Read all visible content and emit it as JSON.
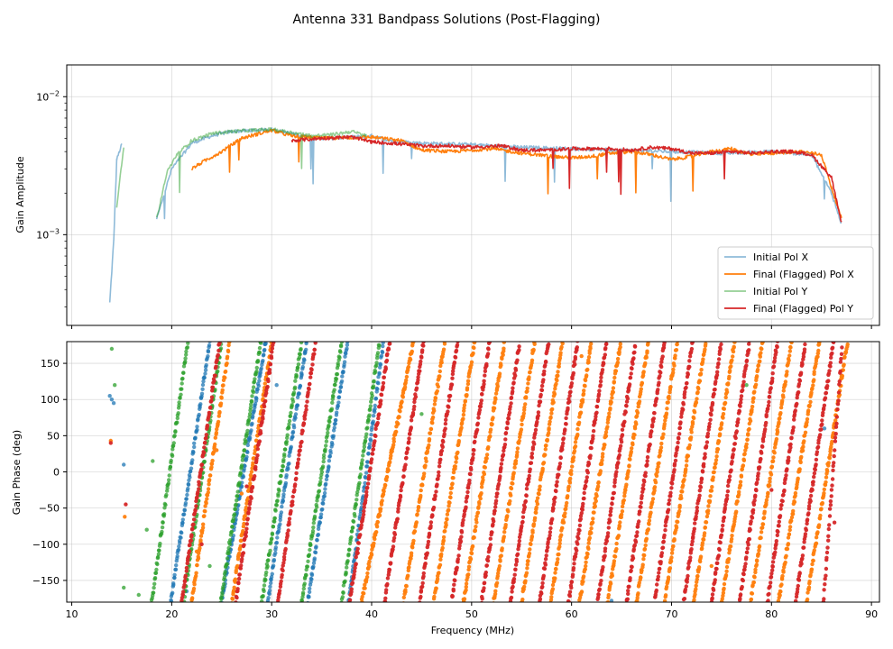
{
  "title": "Antenna 331 Bandpass Solutions (Post-Flagging)",
  "chart_data": [
    {
      "type": "line",
      "panel": "amplitude",
      "ylabel": "Gain Amplitude",
      "yscale": "log",
      "ylim": [
        0.00022,
        0.017
      ],
      "xlim": [
        9.5,
        90.8
      ],
      "y_ticks": [
        {
          "value": 0.001,
          "base": "10",
          "exp": "−3"
        },
        {
          "value": 0.01,
          "base": "10",
          "exp": "−2"
        }
      ],
      "legend_position": "lower-right",
      "series": [
        {
          "name": "Initial Pol X",
          "color": "#1f77b4",
          "alpha": 0.5,
          "x": [
            13.8,
            14.2,
            14.5,
            15.0,
            16.0,
            18.5,
            20.0,
            22.0,
            24.0,
            26.0,
            28.0,
            30.0,
            32.0,
            34.0,
            36.0,
            38.0,
            40.0,
            42.0,
            45.0,
            50.0,
            55.0,
            60.0,
            65.0,
            70.0,
            75.0,
            80.0,
            84.0,
            86.0,
            87.0
          ],
          "y": [
            0.00032,
            0.0009,
            0.0035,
            0.0045,
            null,
            0.0013,
            0.003,
            0.0046,
            0.0052,
            0.0056,
            0.0057,
            0.0058,
            0.0054,
            0.005,
            0.005,
            0.0051,
            0.0052,
            0.0048,
            0.0046,
            0.0045,
            0.0043,
            0.0042,
            0.0041,
            0.004,
            0.0039,
            0.004,
            0.0038,
            0.002,
            0.0012
          ]
        },
        {
          "name": "Final (Flagged) Pol X",
          "color": "#ff7f0e",
          "alpha": 1,
          "x": [
            22.0,
            23.5,
            25.0,
            27.0,
            30.0,
            32.0,
            35.0,
            40.0,
            43.0,
            45.0,
            48.0,
            50.0,
            52.0,
            55.0,
            58.0,
            60.0,
            62.0,
            64.0,
            66.0,
            68.0,
            70.0,
            72.0,
            74.0,
            76.0,
            78.0,
            80.0,
            83.0,
            85.0,
            86.0,
            87.0
          ],
          "y": [
            0.003,
            0.0035,
            0.004,
            0.005,
            0.0057,
            0.0052,
            0.005,
            0.0051,
            0.0048,
            0.0041,
            0.004,
            0.0041,
            0.0042,
            0.0039,
            0.0037,
            0.0036,
            0.0037,
            0.0039,
            0.004,
            0.0038,
            0.0035,
            0.0037,
            0.004,
            0.0042,
            0.0038,
            0.0039,
            0.004,
            0.0038,
            0.0022,
            0.0013
          ]
        },
        {
          "name": "Initial Pol Y",
          "color": "#2ca02c",
          "alpha": 0.5,
          "x": [
            14.5,
            15.2,
            16.0,
            18.5,
            19.5,
            20.5,
            22.0,
            24.0,
            26.0,
            28.0,
            30.0,
            32.0,
            34.0,
            36.0,
            38.0,
            39.5
          ],
          "y": [
            0.0016,
            0.0044,
            null,
            0.0013,
            0.0028,
            0.0038,
            0.0048,
            0.0054,
            0.0056,
            0.0057,
            0.0058,
            0.0055,
            0.0052,
            0.0053,
            0.0056,
            0.0052
          ]
        },
        {
          "name": "Final (Flagged) Pol Y",
          "color": "#d62728",
          "alpha": 1,
          "x": [
            32.0,
            35.0,
            38.0,
            40.0,
            42.0,
            45.0,
            48.0,
            50.0,
            53.0,
            55.0,
            58.0,
            60.0,
            62.0,
            64.0,
            66.0,
            68.0,
            70.0,
            72.0,
            74.0,
            76.0,
            78.0,
            80.0,
            82.0,
            84.0,
            86.0,
            87.0
          ],
          "y": [
            0.0048,
            0.005,
            0.0051,
            0.0047,
            0.0046,
            0.0044,
            0.0044,
            0.0043,
            0.0044,
            0.0041,
            0.0041,
            0.0042,
            0.0042,
            0.0042,
            0.0041,
            0.0043,
            0.0042,
            0.0039,
            0.0039,
            0.004,
            0.0039,
            0.004,
            0.004,
            0.0038,
            0.0026,
            0.0012
          ]
        }
      ]
    },
    {
      "type": "scatter",
      "panel": "phase",
      "ylabel": "Gain Phase (deg)",
      "xlabel": "Frequency (MHz)",
      "xlim": [
        9.5,
        90.8
      ],
      "ylim": [
        -180,
        180
      ],
      "x_ticks": [
        "10",
        "20",
        "30",
        "40",
        "50",
        "60",
        "70",
        "80",
        "90"
      ],
      "y_ticks": [
        "150",
        "100",
        "50",
        "0",
        "−50",
        "−100",
        "−150"
      ],
      "series": [
        {
          "name": "Initial Pol X",
          "color": "#1f77b4",
          "wraps": [
            [
              19.9,
              23.8
            ],
            [
              25.0,
              29.4
            ],
            [
              29.6,
              33.5
            ],
            [
              33.6,
              37.6
            ],
            [
              37.7,
              41.2
            ]
          ],
          "outliers": [
            [
              13.8,
              105
            ],
            [
              14.0,
              100
            ],
            [
              14.2,
              95
            ],
            [
              15.2,
              10
            ],
            [
              21.5,
              -165
            ],
            [
              30.5,
              120
            ],
            [
              64.0,
              -178
            ],
            [
              85.3,
              60
            ]
          ]
        },
        {
          "name": "Final (Flagged) Pol X",
          "color": "#ff7f0e",
          "wraps": [
            [
              22.0,
              25.8
            ],
            [
              26.0,
              30.0
            ],
            [
              39.0,
              44.2
            ],
            [
              43.2,
              47.3
            ],
            [
              46.2,
              50.3
            ],
            [
              49.2,
              53.3
            ],
            [
              52.2,
              56.3
            ],
            [
              55.0,
              59.1
            ],
            [
              57.9,
              62.0
            ],
            [
              60.8,
              64.9
            ],
            [
              63.6,
              67.7
            ],
            [
              66.5,
              70.6
            ],
            [
              69.3,
              73.4
            ],
            [
              72.2,
              76.3
            ],
            [
              75.0,
              79.1
            ],
            [
              77.9,
              82.0
            ],
            [
              80.7,
              84.8
            ],
            [
              83.5,
              87.6
            ]
          ],
          "outliers": [
            [
              13.9,
              43
            ],
            [
              15.3,
              -62
            ],
            [
              22.5,
              -110
            ],
            [
              24.5,
              30
            ],
            [
              27.0,
              -30
            ],
            [
              61.0,
              160
            ],
            [
              74.0,
              -130
            ]
          ]
        },
        {
          "name": "Initial Pol Y",
          "color": "#2ca02c",
          "wraps": [
            [
              18.0,
              21.6
            ],
            [
              21.2,
              25.0
            ],
            [
              24.9,
              28.9
            ],
            [
              29.0,
              33.0
            ],
            [
              33.0,
              37.0
            ],
            [
              37.0,
              40.8
            ]
          ],
          "outliers": [
            [
              14.0,
              170
            ],
            [
              14.3,
              120
            ],
            [
              15.2,
              -160
            ],
            [
              16.7,
              -170
            ],
            [
              17.5,
              -80
            ],
            [
              18.1,
              15
            ],
            [
              23.8,
              -130
            ],
            [
              45.0,
              80
            ],
            [
              77.5,
              120
            ]
          ]
        },
        {
          "name": "Final (Flagged) Pol Y",
          "color": "#d62728",
          "wraps": [
            [
              21.0,
              24.8
            ],
            [
              26.4,
              30.2
            ],
            [
              30.6,
              34.4
            ],
            [
              37.8,
              41.8
            ],
            [
              41.3,
              45.2
            ],
            [
              44.8,
              48.6
            ],
            [
              48.0,
              51.8
            ],
            [
              51.0,
              54.8
            ],
            [
              53.9,
              57.7
            ],
            [
              56.8,
              60.6
            ],
            [
              59.7,
              63.5
            ],
            [
              62.6,
              66.4
            ],
            [
              65.5,
              69.3
            ],
            [
              68.3,
              72.1
            ],
            [
              71.2,
              75.0
            ],
            [
              74.0,
              77.8
            ],
            [
              76.8,
              80.6
            ],
            [
              79.6,
              83.4
            ],
            [
              82.4,
              86.2
            ],
            [
              85.2,
              87.1
            ]
          ],
          "outliers": [
            [
              13.9,
              40
            ],
            [
              15.4,
              -45
            ],
            [
              23.0,
              -100
            ],
            [
              27.5,
              -20
            ],
            [
              80.0,
              -25
            ],
            [
              86.3,
              -70
            ]
          ]
        }
      ]
    }
  ]
}
